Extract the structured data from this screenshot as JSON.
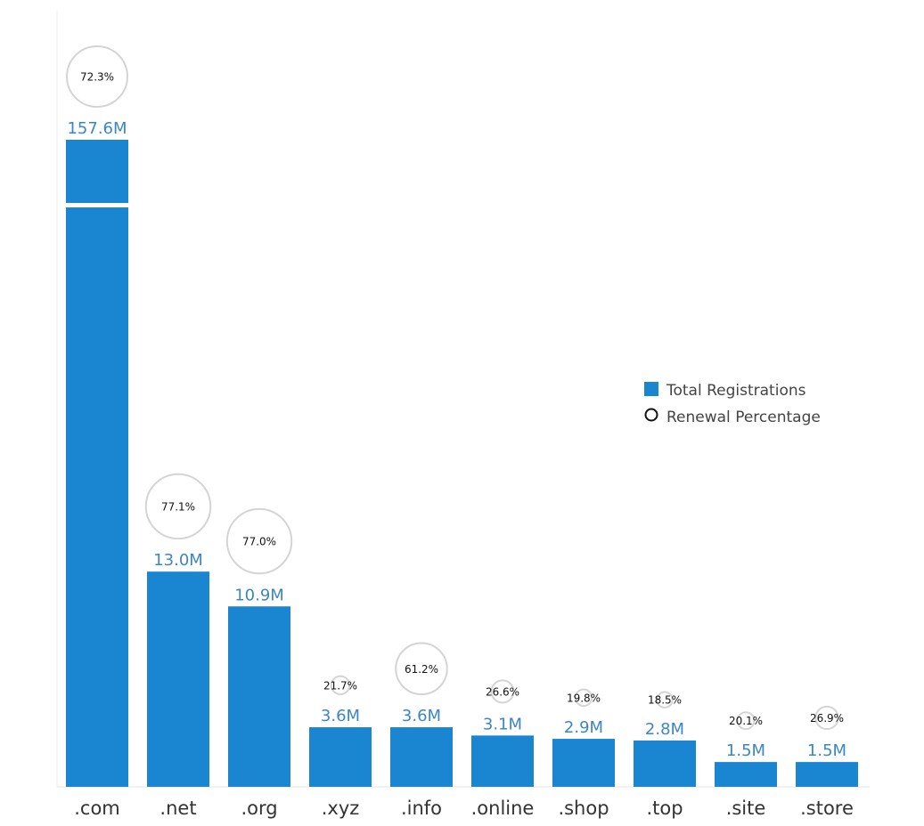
{
  "chart_data": {
    "type": "bar",
    "categories": [
      ".com",
      ".net",
      ".org",
      ".xyz",
      ".info",
      ".online",
      ".shop",
      ".top",
      ".site",
      ".store"
    ],
    "series": [
      {
        "name": "Total Registrations",
        "values": [
          157.6,
          13.0,
          10.9,
          3.6,
          3.6,
          3.1,
          2.9,
          2.8,
          1.5,
          1.5
        ],
        "value_labels": [
          "157.6M",
          "13.0M",
          "10.9M",
          "3.6M",
          "3.6M",
          "3.1M",
          "2.9M",
          "2.8M",
          "1.5M",
          "1.5M"
        ],
        "unit": "M",
        "color": "#1a85d0"
      },
      {
        "name": "Renewal Percentage",
        "values": [
          72.3,
          77.1,
          77.0,
          21.7,
          61.2,
          26.6,
          19.8,
          18.5,
          20.1,
          26.9
        ],
        "value_labels": [
          "72.3%",
          "77.1%",
          "77.0%",
          "21.7%",
          "61.2%",
          "26.6%",
          "19.8%",
          "18.5%",
          "20.1%",
          "26.9%"
        ],
        "marker": "circle"
      }
    ],
    "axis_break": true,
    "grid": false,
    "legend": {
      "position": "right",
      "entries": [
        "Total Registrations",
        "Renewal Percentage"
      ]
    },
    "title": "",
    "xlabel": "",
    "ylabel": ""
  }
}
